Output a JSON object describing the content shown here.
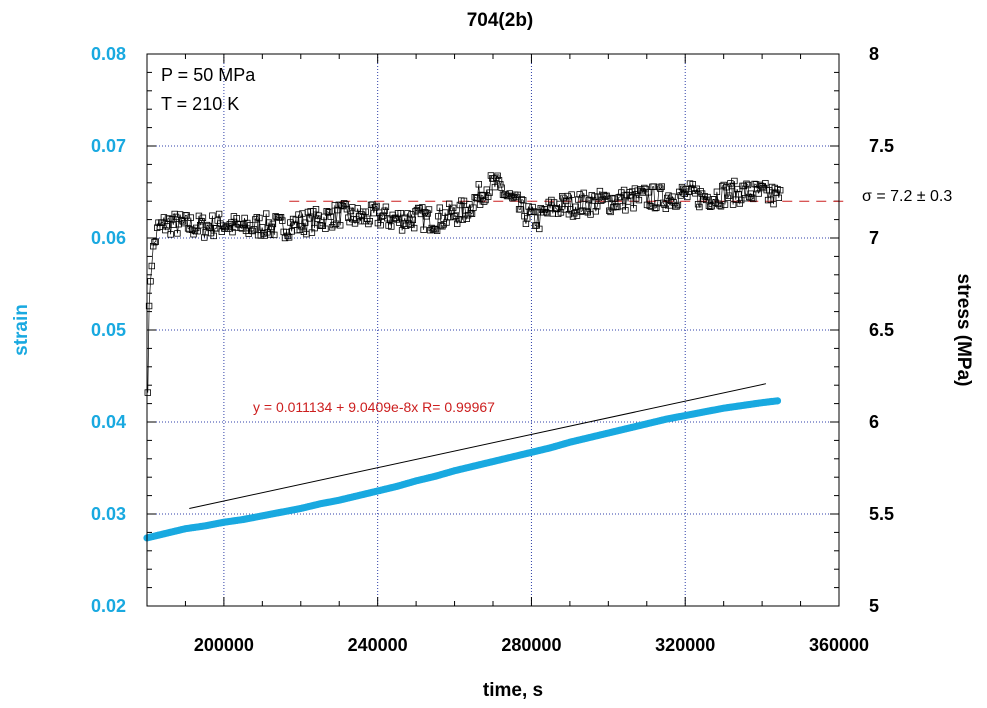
{
  "chart_data": {
    "type": "scatter",
    "title": "704(2b)",
    "xlabel": "time, s",
    "ylabel_left": "strain",
    "ylabel_right": "stress (MPa)",
    "xlim": [
      180000,
      360000
    ],
    "ylim_left": [
      0.02,
      0.08
    ],
    "ylim_right": [
      5,
      8
    ],
    "x_ticks": [
      200000,
      240000,
      280000,
      320000,
      360000
    ],
    "y_ticks_left": [
      "0.02",
      "0.03",
      "0.04",
      "0.05",
      "0.06",
      "0.07",
      "0.08"
    ],
    "y_ticks_right": [
      "5",
      "5.5",
      "6",
      "6.5",
      "7",
      "7.5",
      "8"
    ],
    "grid": true,
    "annotations": {
      "conditions": [
        "P = 50 MPa",
        "T = 210 K"
      ],
      "fit_equation": "y = 0.011134 + 9.0409e-8x   R= 0.99967",
      "mean_stress": "σ = 7.2 ± 0.3"
    },
    "fit_line": {
      "intercept": 0.011134,
      "slope": 9.0409e-08,
      "x_start": 191000,
      "x_end": 341000,
      "offset": 0.0022
    },
    "mean_stress_line": {
      "value": 7.2,
      "x_start": 217000,
      "x_end": 362000
    },
    "series": [
      {
        "name": "strain",
        "axis": "left",
        "color": "#19a9e0",
        "marker": "filled-circle",
        "points": [
          [
            180000,
            0.0274
          ],
          [
            185000,
            0.0279
          ],
          [
            190000,
            0.0284
          ],
          [
            195000,
            0.0287
          ],
          [
            200000,
            0.0291
          ],
          [
            205000,
            0.0294
          ],
          [
            210000,
            0.0298
          ],
          [
            215000,
            0.0302
          ],
          [
            220000,
            0.0306
          ],
          [
            225000,
            0.0311
          ],
          [
            230000,
            0.0315
          ],
          [
            235000,
            0.032
          ],
          [
            240000,
            0.0325
          ],
          [
            245000,
            0.033
          ],
          [
            250000,
            0.0336
          ],
          [
            255000,
            0.0341
          ],
          [
            260000,
            0.0347
          ],
          [
            265000,
            0.0352
          ],
          [
            270000,
            0.0357
          ],
          [
            275000,
            0.0362
          ],
          [
            280000,
            0.0367
          ],
          [
            285000,
            0.0372
          ],
          [
            290000,
            0.0378
          ],
          [
            295000,
            0.0383
          ],
          [
            300000,
            0.0388
          ],
          [
            305000,
            0.0393
          ],
          [
            310000,
            0.0398
          ],
          [
            315000,
            0.0403
          ],
          [
            320000,
            0.0407
          ],
          [
            325000,
            0.0411
          ],
          [
            330000,
            0.0415
          ],
          [
            335000,
            0.0418
          ],
          [
            340000,
            0.0421
          ],
          [
            344000,
            0.0423
          ]
        ]
      },
      {
        "name": "stress",
        "axis": "right",
        "color": "#000000",
        "marker": "open-square",
        "points": [
          [
            180200,
            6.22
          ],
          [
            180500,
            6.55
          ],
          [
            181000,
            6.85
          ],
          [
            182000,
            6.98
          ],
          [
            183000,
            7.05
          ],
          [
            185000,
            7.08
          ],
          [
            190000,
            7.07
          ],
          [
            195000,
            7.06
          ],
          [
            200000,
            7.08
          ],
          [
            205000,
            7.05
          ],
          [
            210000,
            7.07
          ],
          [
            215000,
            7.06
          ],
          [
            220000,
            7.08
          ],
          [
            225000,
            7.1
          ],
          [
            230000,
            7.13
          ],
          [
            235000,
            7.11
          ],
          [
            240000,
            7.12
          ],
          [
            245000,
            7.1
          ],
          [
            250000,
            7.11
          ],
          [
            255000,
            7.1
          ],
          [
            260000,
            7.13
          ],
          [
            263000,
            7.15
          ],
          [
            266000,
            7.22
          ],
          [
            268000,
            7.27
          ],
          [
            270000,
            7.29
          ],
          [
            272000,
            7.27
          ],
          [
            274000,
            7.22
          ],
          [
            276000,
            7.18
          ],
          [
            278000,
            7.14
          ],
          [
            280000,
            7.11
          ],
          [
            282000,
            7.1
          ],
          [
            284000,
            7.14
          ],
          [
            286000,
            7.17
          ],
          [
            290000,
            7.18
          ],
          [
            295000,
            7.19
          ],
          [
            300000,
            7.2
          ],
          [
            305000,
            7.21
          ],
          [
            310000,
            7.22
          ],
          [
            315000,
            7.22
          ],
          [
            320000,
            7.24
          ],
          [
            325000,
            7.22
          ],
          [
            330000,
            7.24
          ],
          [
            335000,
            7.25
          ],
          [
            340000,
            7.24
          ],
          [
            345000,
            7.22
          ]
        ]
      }
    ]
  }
}
